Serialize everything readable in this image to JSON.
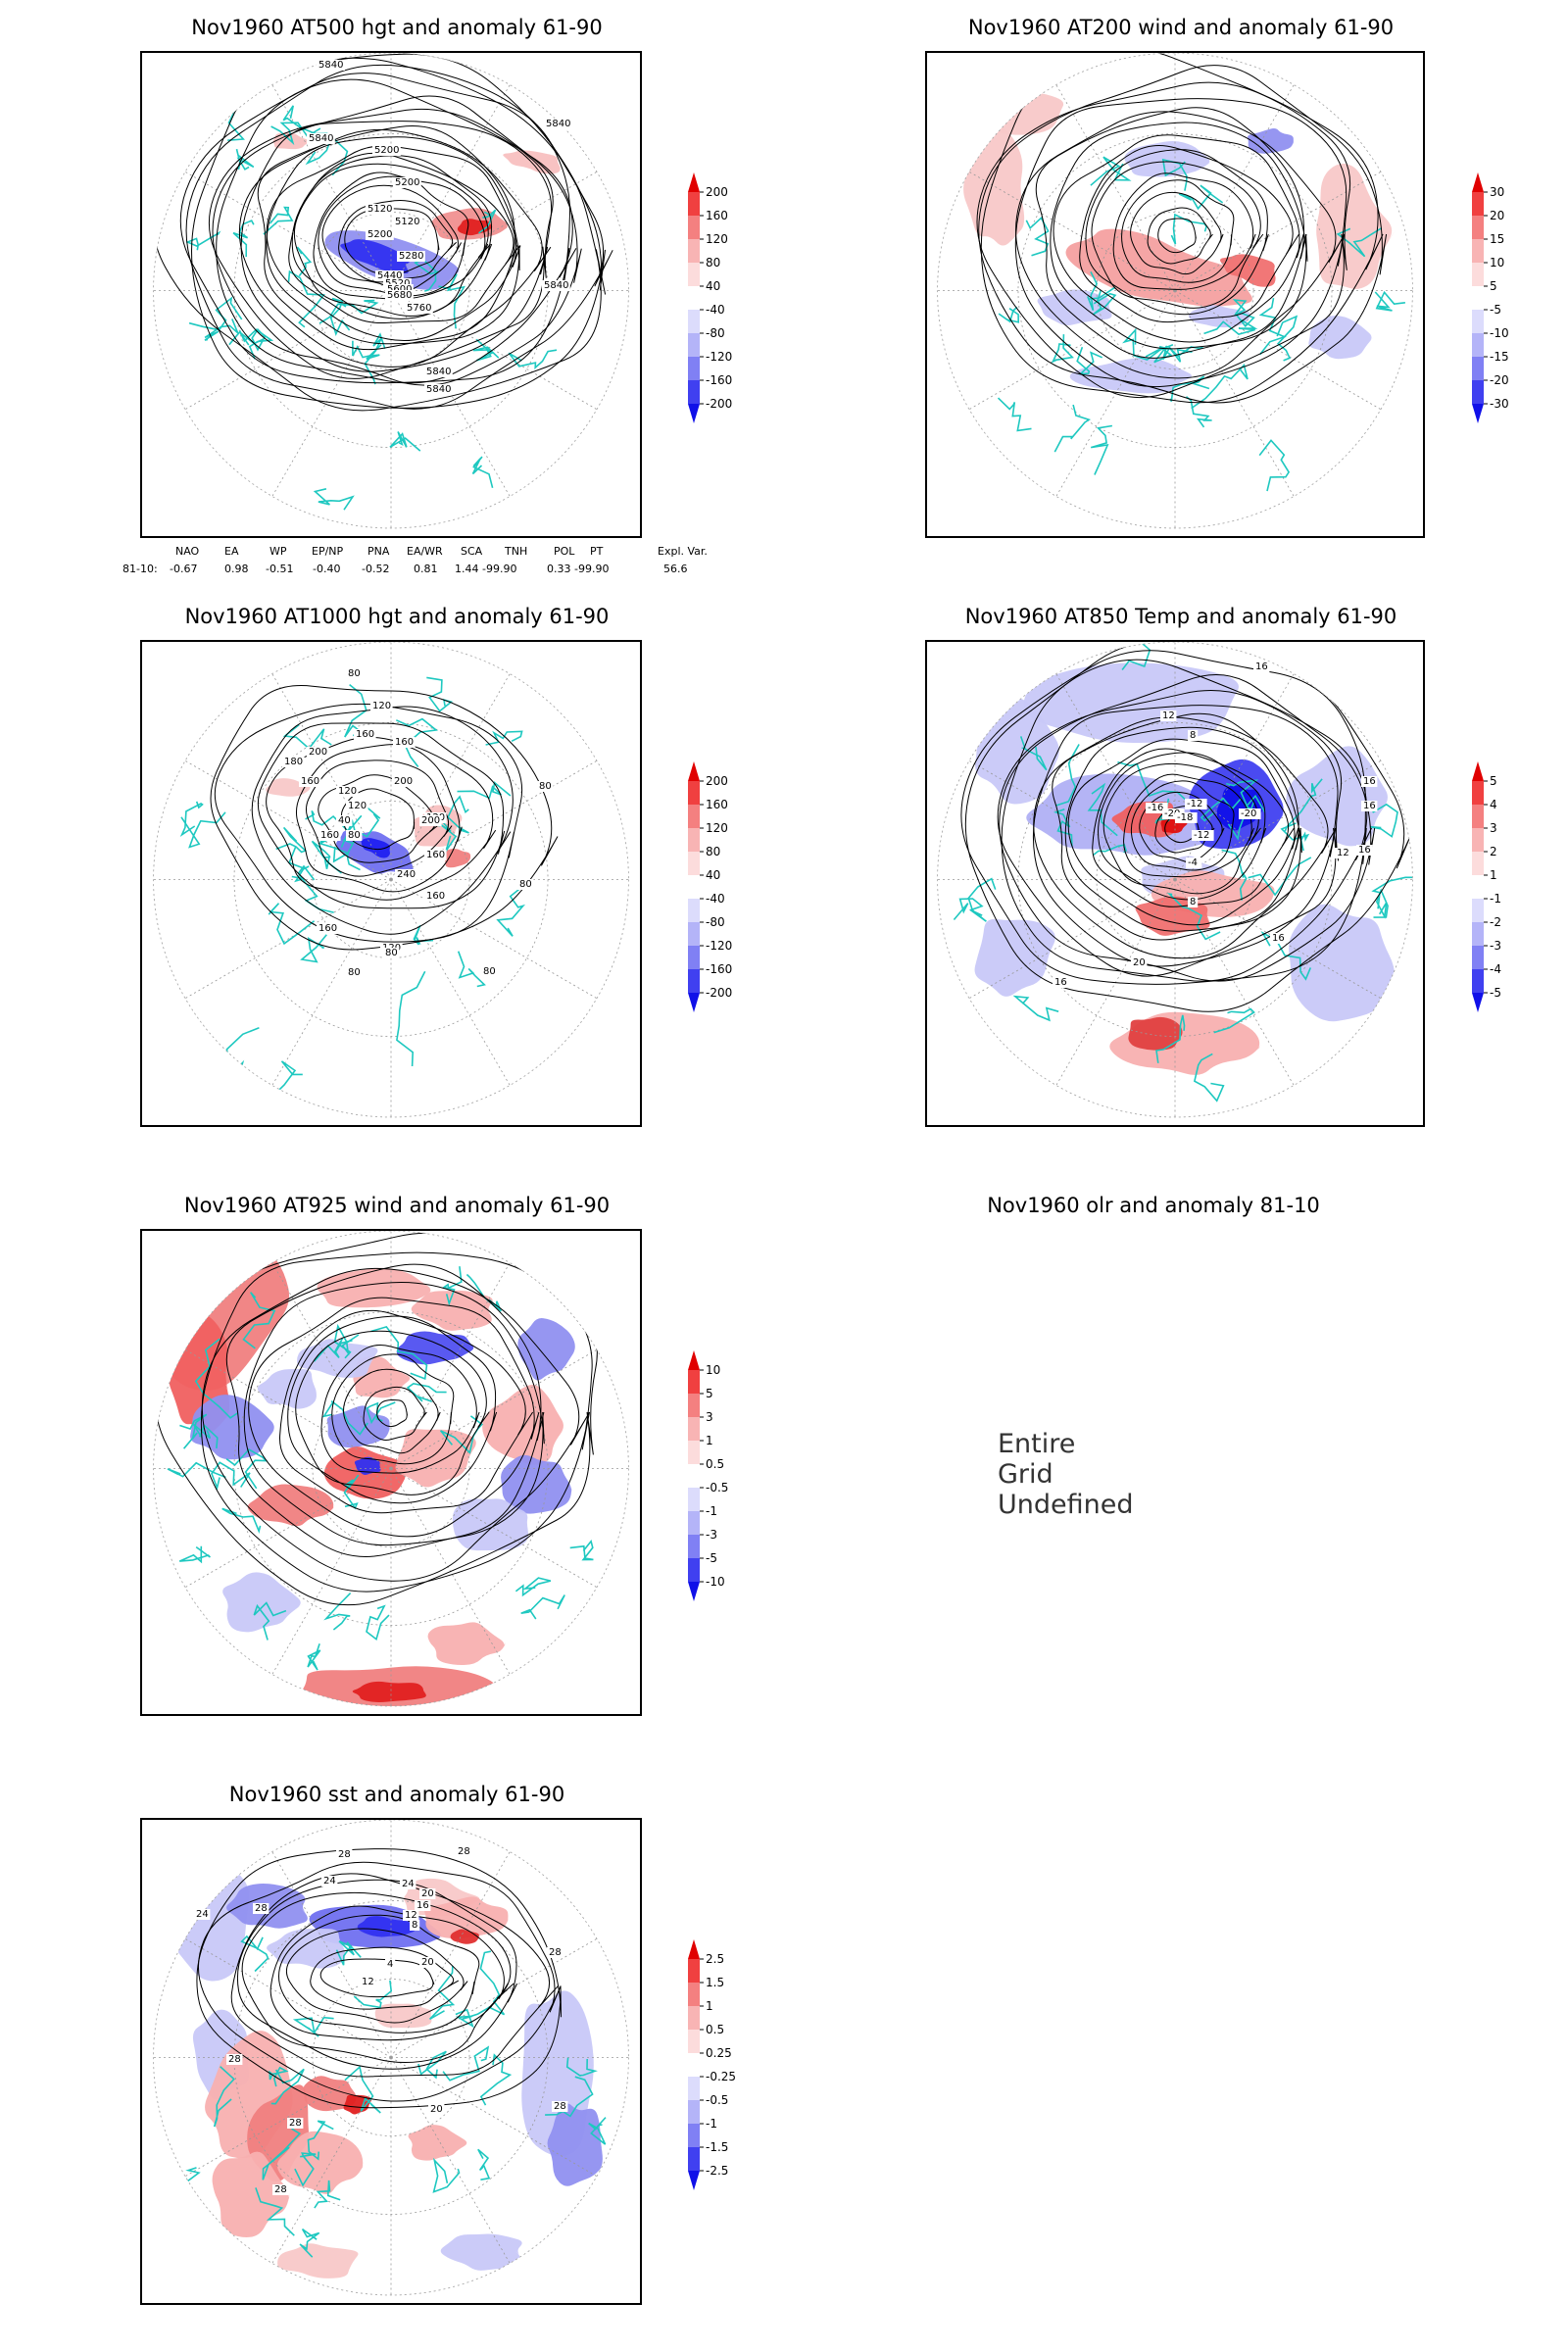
{
  "colors": {
    "coast": "#1ec8c0",
    "contour": "#000000",
    "pos_strong": "#e00000",
    "pos_mid": "#f06060",
    "pos_light": "#f8b8b8",
    "neg_light": "#c8c8f8",
    "neg_mid": "#7070f0",
    "neg_strong": "#1010f0"
  },
  "chart_data": [
    {
      "type": "heatmap",
      "id": "p500",
      "title": "Nov1960 AT500 hgt and anomaly 61-90",
      "legend_levels": [
        "200",
        "160",
        "120",
        "80",
        "40",
        "-40",
        "-80",
        "-120",
        "-160",
        "-200"
      ],
      "contour_labels": [
        "5840",
        "5840",
        "5840",
        "5200",
        "5200",
        "5120",
        "5120",
        "5200",
        "5280",
        "5440",
        "5520",
        "5600",
        "5680",
        "5760",
        "5840",
        "5840",
        "5840"
      ],
      "index_table": {
        "headers": [
          "NAO",
          "EA",
          "WP",
          "EP/NP",
          "PNA",
          "EA/WR",
          "SCA",
          "TNH",
          "POL",
          "PT",
          "Expl. Var."
        ],
        "row_label": "81-10:",
        "values": [
          "-0.67",
          "0.98",
          "-0.51",
          "-0.40",
          "-0.52",
          "0.81",
          "1.44",
          "-99.90",
          "0.33",
          "-99.90",
          "56.6"
        ]
      }
    },
    {
      "type": "heatmap",
      "id": "p200",
      "title": "Nov1960 AT200 wind and anomaly 61-90",
      "legend_levels": [
        "30",
        "20",
        "15",
        "10",
        "5",
        "-5",
        "-10",
        "-15",
        "-20",
        "-30"
      ]
    },
    {
      "type": "heatmap",
      "id": "p1000",
      "title": "Nov1960 AT1000 hgt and anomaly 61-90",
      "legend_levels": [
        "200",
        "160",
        "120",
        "80",
        "40",
        "-40",
        "-80",
        "-120",
        "-160",
        "-200"
      ],
      "contour_labels": [
        "80",
        "120",
        "160",
        "160",
        "200",
        "80",
        "180",
        "160",
        "120",
        "120",
        "40",
        "80",
        "160",
        "200",
        "120",
        "200",
        "160",
        "240",
        "160",
        "80",
        "160",
        "120",
        "80",
        "80",
        "80"
      ]
    },
    {
      "type": "heatmap",
      "id": "p850",
      "title": "Nov1960 AT850 Temp and anomaly 61-90",
      "legend_levels": [
        "5",
        "4",
        "3",
        "2",
        "1",
        "-1",
        "-2",
        "-3",
        "-4",
        "-5"
      ],
      "contour_labels": [
        "16",
        "12",
        "8",
        "-16",
        "-20",
        "-12",
        "-18",
        "-20",
        "-12",
        "-4",
        "16",
        "16",
        "16",
        "12",
        "8",
        "20",
        "16",
        "16"
      ]
    },
    {
      "type": "heatmap",
      "id": "p925",
      "title": "Nov1960 AT925 wind and anomaly 61-90",
      "legend_levels": [
        "10",
        "5",
        "3",
        "1",
        "0.5",
        "-0.5",
        "-1",
        "-3",
        "-5",
        "-10"
      ]
    },
    {
      "type": "heatmap",
      "id": "polr",
      "title": "Nov1960 olr and anomaly 81-10",
      "message": "Entire Grid Undefined"
    },
    {
      "type": "heatmap",
      "id": "psst",
      "title": "Nov1960 sst and anomaly 61-90",
      "legend_levels": [
        "2.5",
        "1.5",
        "1",
        "0.5",
        "0.25",
        "-0.25",
        "-0.5",
        "-1",
        "-1.5",
        "-2.5"
      ],
      "contour_labels": [
        "28",
        "28",
        "24",
        "24",
        "20",
        "16",
        "12",
        "8",
        "4",
        "28",
        "24",
        "28",
        "20",
        "12",
        "28",
        "28",
        "28",
        "20",
        "28"
      ]
    }
  ]
}
